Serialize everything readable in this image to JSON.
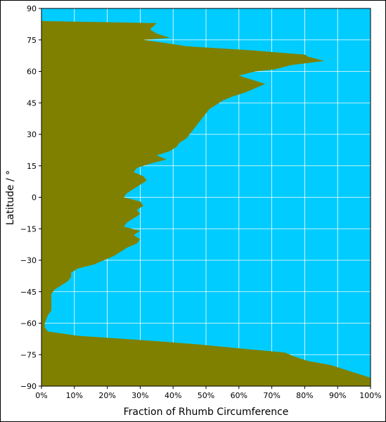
{
  "chart_data": {
    "type": "area",
    "orientation": "horizontal",
    "xlabel": "Fraction of Rhumb Circumference",
    "ylabel": "Latitude / °",
    "color": "#808000",
    "background": "#00ccff",
    "grid": true,
    "xlim": [
      0,
      100
    ],
    "ylim": [
      -90,
      90
    ],
    "xticks": [
      {
        "value": 0,
        "label": "0%"
      },
      {
        "value": 10,
        "label": "10%"
      },
      {
        "value": 20,
        "label": "20%"
      },
      {
        "value": 30,
        "label": "30%"
      },
      {
        "value": 40,
        "label": "40%"
      },
      {
        "value": 50,
        "label": "50%"
      },
      {
        "value": 60,
        "label": "60%"
      },
      {
        "value": 70,
        "label": "70%"
      },
      {
        "value": 80,
        "label": "80%"
      },
      {
        "value": 90,
        "label": "90%"
      },
      {
        "value": 100,
        "label": "100%"
      }
    ],
    "yticks": [
      90,
      75,
      60,
      45,
      30,
      15,
      0,
      {
        "value": -15,
        "label": "−15"
      },
      {
        "value": -30,
        "label": "−30"
      },
      {
        "value": -45,
        "label": "−45"
      },
      {
        "value": -60,
        "label": "−60"
      },
      {
        "value": -75,
        "label": "−75"
      },
      {
        "value": -90,
        "label": "−90"
      }
    ],
    "latitude": [
      90,
      84,
      83,
      80,
      78,
      76,
      75,
      73,
      72,
      70,
      68,
      67,
      65,
      63,
      61,
      60,
      58,
      56,
      54,
      52,
      50,
      48,
      46,
      44,
      42,
      40,
      38,
      36,
      34,
      32,
      30,
      28,
      26,
      24,
      22,
      20,
      18,
      16,
      14,
      12,
      10,
      8,
      6,
      4,
      2,
      0,
      -2,
      -4,
      -6,
      -8,
      -10,
      -12,
      -14,
      -16,
      -18,
      -20,
      -22,
      -24,
      -26,
      -28,
      -30,
      -32,
      -34,
      -36,
      -38,
      -40,
      -42,
      -44,
      -46,
      -48,
      -50,
      -52,
      -54,
      -56,
      -58,
      -60,
      -62,
      -64,
      -66,
      -68,
      -70,
      -72,
      -74,
      -76,
      -78,
      -80,
      -82,
      -84,
      -86,
      -88,
      -90
    ],
    "values": [
      0,
      0,
      35,
      33,
      35,
      39,
      31,
      40,
      44,
      64,
      80,
      81,
      86,
      76,
      71,
      65,
      60,
      64,
      68,
      65,
      62,
      58,
      55,
      53,
      51,
      50,
      49,
      48,
      47,
      46,
      45,
      44,
      42,
      41,
      39,
      35,
      38,
      33,
      29,
      28,
      31,
      32,
      30,
      28,
      26,
      25,
      30,
      31,
      29,
      30,
      28,
      26,
      25,
      30,
      28,
      30,
      29,
      26,
      24,
      22,
      19,
      16,
      11,
      9,
      9,
      8,
      6,
      4,
      3,
      3,
      3,
      3,
      3,
      2,
      1.5,
      1,
      1,
      2,
      11,
      30,
      47,
      60,
      74,
      77,
      81,
      88,
      92,
      96,
      100,
      100,
      100
    ]
  }
}
